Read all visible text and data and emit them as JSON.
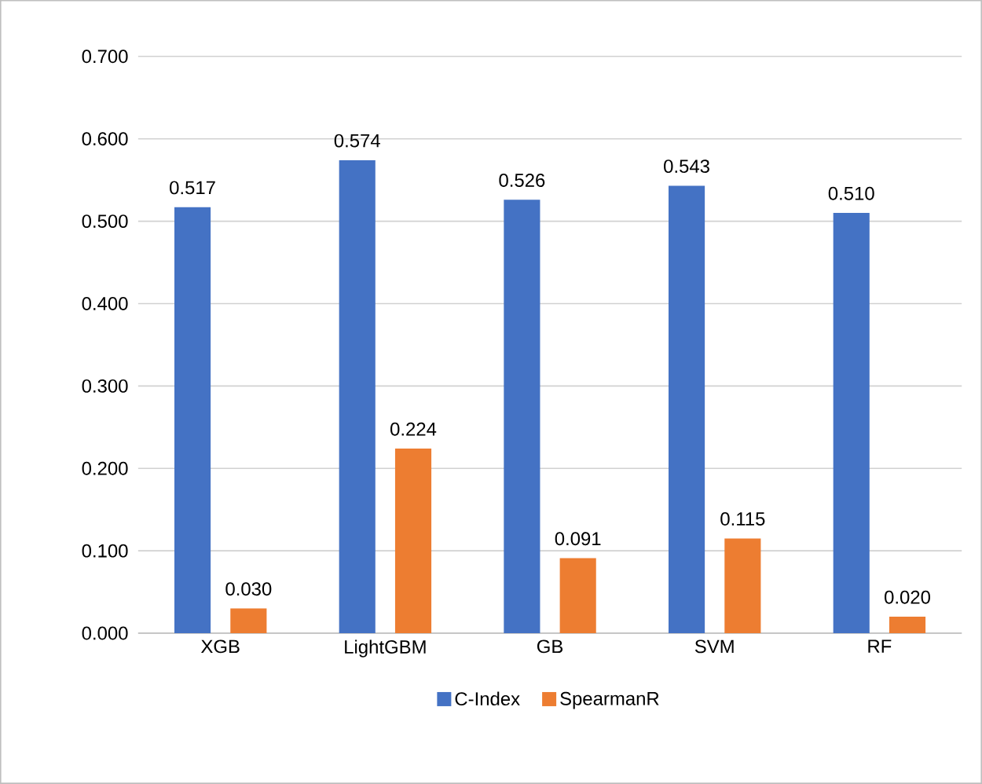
{
  "chart_data": {
    "type": "bar",
    "categories": [
      "XGB",
      "LightGBM",
      "GB",
      "SVM",
      "RF"
    ],
    "series": [
      {
        "name": "C-Index",
        "color": "#4472c4",
        "values": [
          0.517,
          0.574,
          0.526,
          0.543,
          0.51
        ],
        "value_labels": [
          "0.517",
          "0.574",
          "0.526",
          "0.543",
          "0.510"
        ]
      },
      {
        "name": "SpearmanR",
        "color": "#ed7d31",
        "values": [
          0.03,
          0.224,
          0.091,
          0.115,
          0.02
        ],
        "value_labels": [
          "0.030",
          "0.224",
          "0.091",
          "0.115",
          "0.020"
        ]
      }
    ],
    "ylim": [
      0,
      0.7
    ],
    "yticks": [
      {
        "value": 0,
        "label": "0.000"
      },
      {
        "value": 0.1,
        "label": "0.100"
      },
      {
        "value": 0.2,
        "label": "0.200"
      },
      {
        "value": 0.3,
        "label": "0.300"
      },
      {
        "value": 0.4,
        "label": "0.400"
      },
      {
        "value": 0.5,
        "label": "0.500"
      },
      {
        "value": 0.6,
        "label": "0.600"
      },
      {
        "value": 0.7,
        "label": "0.700"
      }
    ],
    "grid": "y",
    "legend": "bottom"
  }
}
